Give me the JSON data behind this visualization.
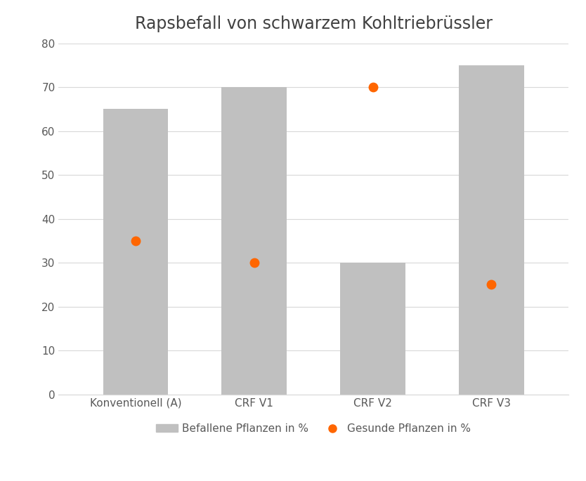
{
  "title": "Rapsbefall von schwarzem Kohltriebrüssler",
  "categories": [
    "Konventionell (A)",
    "CRF V1",
    "CRF V2",
    "CRF V3"
  ],
  "bar_values": [
    65,
    70,
    30,
    75
  ],
  "dot_values": [
    35,
    30,
    70,
    25
  ],
  "bar_color": "#c0c0c0",
  "dot_color": "#ff6600",
  "ylim": [
    0,
    80
  ],
  "yticks": [
    0,
    10,
    20,
    30,
    40,
    50,
    60,
    70,
    80
  ],
  "legend_bar_label": "Befallene Pflanzen in %",
  "legend_dot_label": "Gesunde Pflanzen in %",
  "background_color": "#ffffff",
  "grid_color": "#d8d8d8",
  "title_fontsize": 17,
  "tick_fontsize": 11,
  "legend_fontsize": 11,
  "bar_width": 0.55,
  "title_color": "#404040",
  "tick_color": "#595959",
  "axis_label_color": "#595959"
}
